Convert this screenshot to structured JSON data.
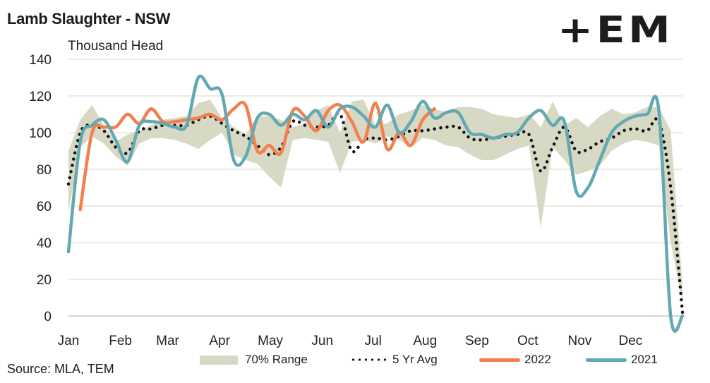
{
  "header": {
    "title": "Lamb Slaughter - NSW",
    "unit": "Thousand Head",
    "logo": "+EM"
  },
  "footer": {
    "source": "Source: MLA, TEM"
  },
  "colors": {
    "range": "#d8d9c5",
    "avg": "#111111",
    "y2022": "#f47f4e",
    "y2021": "#62a9b2",
    "grid": "#ebebe0"
  },
  "chart_data": {
    "type": "line",
    "title": "Lamb Slaughter - NSW",
    "ylabel": "Thousand Head",
    "xlabel": "",
    "ylim": [
      0,
      140
    ],
    "yticks": [
      0,
      20,
      40,
      60,
      80,
      100,
      120,
      140
    ],
    "x_unit": "week of year (0-52)",
    "xlim": [
      0,
      52
    ],
    "month_ticks": [
      {
        "label": "Jan",
        "week": 0
      },
      {
        "label": "Feb",
        "week": 4.4
      },
      {
        "label": "Mar",
        "week": 8.4
      },
      {
        "label": "Apr",
        "week": 12.8
      },
      {
        "label": "May",
        "week": 17.1
      },
      {
        "label": "Jun",
        "week": 21.5
      },
      {
        "label": "Jul",
        "week": 25.8
      },
      {
        "label": "Aug",
        "week": 30.2
      },
      {
        "label": "Sep",
        "week": 34.6
      },
      {
        "label": "Oct",
        "week": 38.9
      },
      {
        "label": "Nov",
        "week": 43.3
      },
      {
        "label": "Dec",
        "week": 47.6
      }
    ],
    "grid": true,
    "legend_position": "bottom",
    "series": [
      {
        "name": "70% Range",
        "kind": "band",
        "low": [
          57,
          92,
          98,
          94,
          87,
          82,
          94,
          97,
          97,
          96,
          94,
          91,
          96,
          100,
          88,
          85,
          83,
          76,
          70,
          96,
          97,
          96,
          95,
          78,
          95,
          96,
          94,
          98,
          96,
          92,
          97,
          96,
          93,
          92,
          88,
          85,
          85,
          88,
          91,
          93,
          48,
          92,
          85,
          77,
          79,
          82,
          90,
          94,
          96,
          95,
          93,
          40,
          8
        ],
        "high": [
          90,
          107,
          115,
          104,
          95,
          99,
          101,
          104,
          107,
          108,
          109,
          116,
          118,
          108,
          103,
          99,
          109,
          109,
          107,
          103,
          105,
          112,
          115,
          100,
          117,
          118,
          104,
          105,
          110,
          112,
          115,
          113,
          111,
          114,
          114,
          113,
          110,
          109,
          108,
          110,
          103,
          117,
          104,
          108,
          103,
          109,
          113,
          110,
          111,
          114,
          114,
          101,
          17
        ]
      },
      {
        "name": "5 Yr Avg",
        "kind": "dotted",
        "values": [
          72,
          100,
          104,
          101,
          92,
          89,
          101,
          102,
          104,
          104,
          104,
          107,
          109,
          105,
          101,
          98,
          93,
          88,
          92,
          106,
          104,
          103,
          104,
          110,
          90,
          96,
          97,
          96,
          98,
          101,
          101,
          102,
          103,
          103,
          97,
          96,
          97,
          98,
          99,
          99,
          79,
          92,
          103,
          90,
          91,
          95,
          97,
          101,
          102,
          101,
          106,
          70,
          2
        ]
      },
      {
        "name": "2022",
        "kind": "line",
        "start_week": 1,
        "values": [
          58,
          100,
          103,
          103,
          110,
          105,
          113,
          106,
          106,
          107,
          108,
          110,
          107,
          113,
          115,
          90,
          93,
          89,
          112,
          109,
          101,
          112,
          115,
          106,
          95,
          116,
          91,
          100,
          93,
          107,
          113
        ]
      },
      {
        "name": "2021",
        "kind": "line",
        "values": [
          35,
          95,
          104,
          107,
          96,
          84,
          104,
          106,
          105,
          103,
          104,
          130,
          124,
          121,
          85,
          87,
          108,
          110,
          104,
          110,
          107,
          112,
          103,
          113,
          114,
          109,
          103,
          115,
          100,
          106,
          117,
          108,
          111,
          111,
          100,
          99,
          97,
          99,
          100,
          108,
          112,
          104,
          106,
          68,
          70,
          85,
          100,
          106,
          109,
          110,
          112,
          0,
          0
        ]
      }
    ],
    "legend": [
      "70% Range",
      "5 Yr Avg",
      "2022",
      "2021"
    ]
  }
}
